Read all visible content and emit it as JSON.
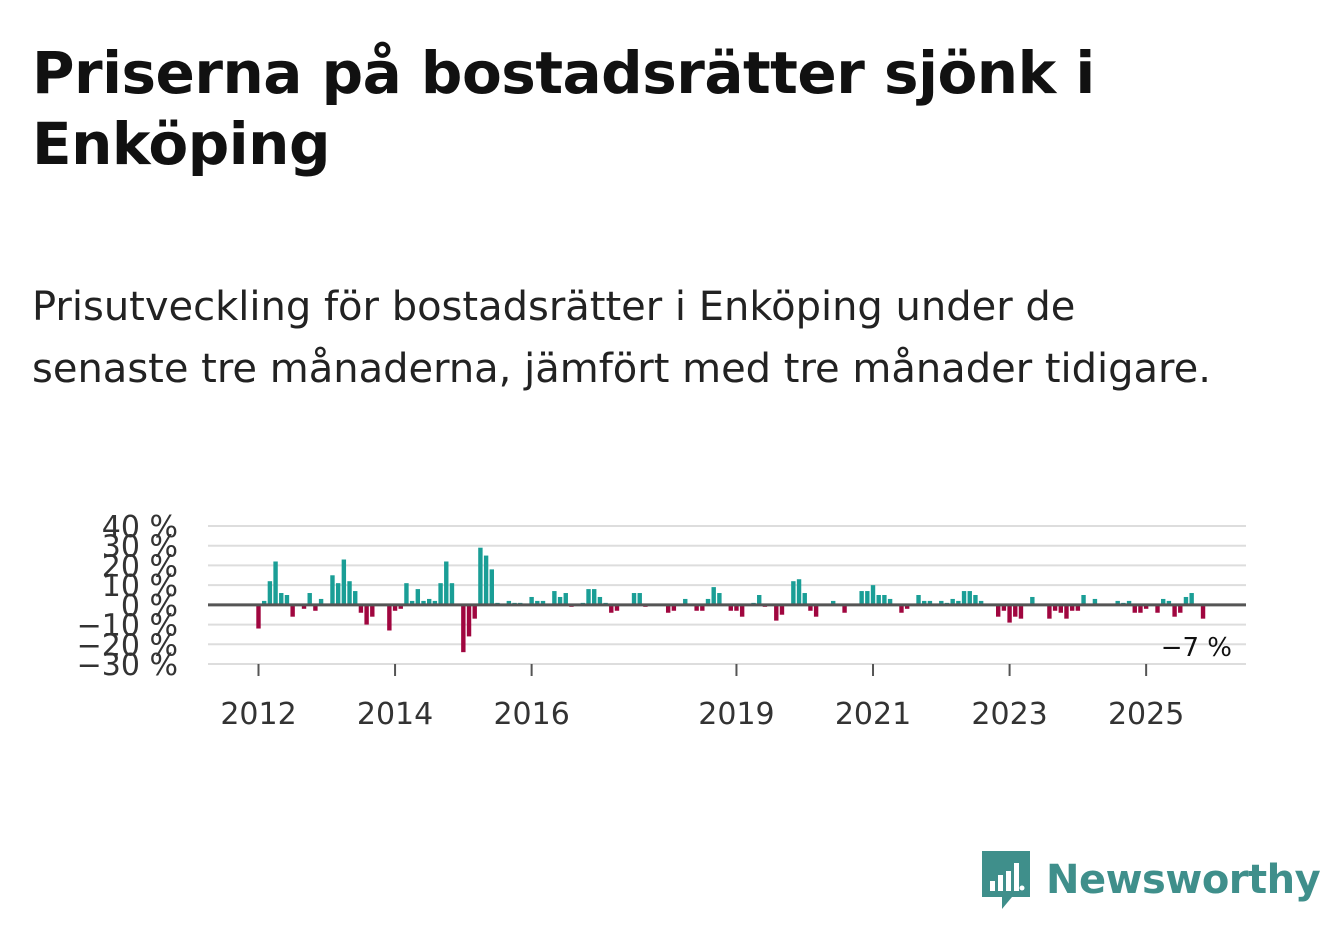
{
  "title": "Priserna på bostadsrätter sjönk i Enköping",
  "subtitle": "Prisutveckling för bostadsrätter i Enköping under de senaste tre månaderna, jämfört med tre månader tidigare.",
  "brand": {
    "name": "Newsworthy",
    "color": "#3f8f8b",
    "icon": "bar-chart-speech-bubble-icon"
  },
  "chart_data": {
    "type": "bar",
    "title": "",
    "xlabel": "",
    "ylabel": "",
    "ylim": [
      -30,
      40
    ],
    "y_ticks": [
      40,
      30,
      20,
      10,
      0,
      -10,
      -20,
      -30
    ],
    "y_tick_labels": [
      "40 %",
      "30 %",
      "20 %",
      "10 %",
      "0 %",
      "−10 %",
      "−20 %",
      "−30 %"
    ],
    "x_ticks": [
      {
        "label": "2012",
        "index": 0
      },
      {
        "label": "2014",
        "index": 24
      },
      {
        "label": "2016",
        "index": 48
      },
      {
        "label": "2019",
        "index": 84
      },
      {
        "label": "2021",
        "index": 108
      },
      {
        "label": "2023",
        "index": 132
      },
      {
        "label": "2025",
        "index": 156
      }
    ],
    "start": "2012-01",
    "frequency": "monthly",
    "grid": true,
    "colors": {
      "positive": "#1a9e96",
      "negative": "#a0063f",
      "grid": "#dddddd",
      "zero": "#555555"
    },
    "end_label": "−7 %",
    "values": [
      -12,
      2,
      12,
      22,
      6,
      5,
      -6,
      0,
      -2,
      6,
      -3,
      3,
      0,
      15,
      11,
      23,
      12,
      7,
      -4,
      -10,
      -6,
      0,
      0,
      -13,
      -3,
      -2,
      11,
      2,
      8,
      2,
      3,
      2,
      11,
      22,
      11,
      0,
      -24,
      -16,
      -7,
      29,
      25,
      18,
      1,
      0,
      2,
      1,
      1,
      0,
      4,
      2,
      2,
      0,
      7,
      4,
      6,
      -1,
      0,
      1,
      8,
      8,
      4,
      1,
      -4,
      -3,
      0,
      0,
      6,
      6,
      -1,
      0,
      0,
      0,
      -4,
      -3,
      0,
      3,
      0,
      -3,
      -3,
      3,
      9,
      6,
      0,
      -3,
      -3,
      -6,
      0,
      1,
      5,
      -1,
      0,
      -8,
      -5,
      0,
      12,
      13,
      6,
      -3,
      -6,
      0,
      0,
      2,
      0,
      -4,
      0,
      0,
      7,
      7,
      10,
      5,
      5,
      3,
      0,
      -4,
      -2,
      0,
      5,
      2,
      2,
      0,
      2,
      1,
      3,
      2,
      7,
      7,
      5,
      2,
      0,
      0,
      -6,
      -3,
      -9,
      -6,
      -7,
      0,
      4,
      0,
      0,
      -7,
      -3,
      -4,
      -7,
      -3,
      -3,
      5,
      0,
      3,
      0,
      0,
      0,
      2,
      1,
      2,
      -4,
      -4,
      -2,
      0,
      -4,
      3,
      2,
      -6,
      -4,
      4,
      6,
      0,
      -7
    ]
  }
}
